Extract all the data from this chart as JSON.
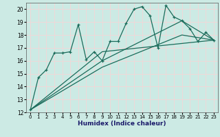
{
  "xlabel": "Humidex (Indice chaleur)",
  "background_color": "#cceae4",
  "line_color": "#1a6b5a",
  "grid_color": "#f0d8d8",
  "xlim": [
    -0.5,
    23.5
  ],
  "ylim": [
    12,
    20.5
  ],
  "yticks": [
    12,
    13,
    14,
    15,
    16,
    17,
    18,
    19,
    20
  ],
  "xticks": [
    0,
    1,
    2,
    3,
    4,
    5,
    6,
    7,
    8,
    9,
    10,
    11,
    12,
    13,
    14,
    15,
    16,
    17,
    18,
    19,
    20,
    21,
    22,
    23
  ],
  "line1_x": [
    0,
    1,
    2,
    3,
    4,
    5,
    6,
    7,
    8,
    9,
    10,
    11,
    12,
    13,
    14,
    15,
    16,
    17,
    18,
    19,
    20,
    21,
    22,
    23
  ],
  "line1_y": [
    12.2,
    14.7,
    15.3,
    16.6,
    16.6,
    16.7,
    18.8,
    16.1,
    16.7,
    16.0,
    17.5,
    17.5,
    18.9,
    20.0,
    20.2,
    19.5,
    17.0,
    20.3,
    19.4,
    19.1,
    18.5,
    17.5,
    18.2,
    17.6
  ],
  "line2_x": [
    0,
    9,
    23
  ],
  "line2_y": [
    12.2,
    16.7,
    17.6
  ],
  "line3_x": [
    0,
    9,
    19,
    23
  ],
  "line3_y": [
    12.2,
    16.0,
    19.1,
    17.6
  ],
  "line4_x": [
    0,
    9,
    19,
    23
  ],
  "line4_y": [
    12.2,
    15.5,
    18.0,
    17.6
  ]
}
